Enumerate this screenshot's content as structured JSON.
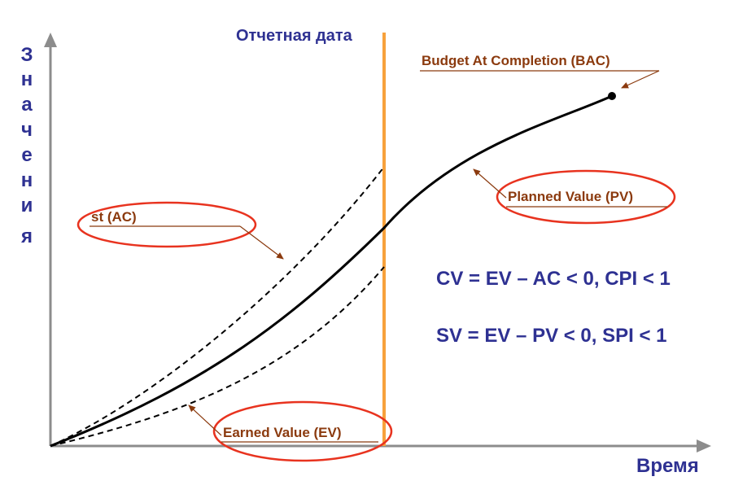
{
  "axes": {
    "y_label": "Значения",
    "x_label": "Время"
  },
  "report_date_label": "Отчетная дата",
  "curves": {
    "bac_label": "Budget At Completion (BAC)",
    "pv_label": "Planned Value (PV)",
    "ac_label": "st (AC)",
    "ev_label": "Earned Value (EV)"
  },
  "formulas": {
    "cost": "CV = EV – AC < 0, CPI < 1",
    "schedule": "SV = EV – PV < 0, SPI < 1"
  },
  "colors": {
    "axis": "#8c8c8c",
    "axis_text": "#2e3192",
    "report_line": "#f7a13c",
    "label_text": "#8b3a0e",
    "ellipse": "#e8331f",
    "curve": "#000000",
    "formula": "#2e3192"
  }
}
